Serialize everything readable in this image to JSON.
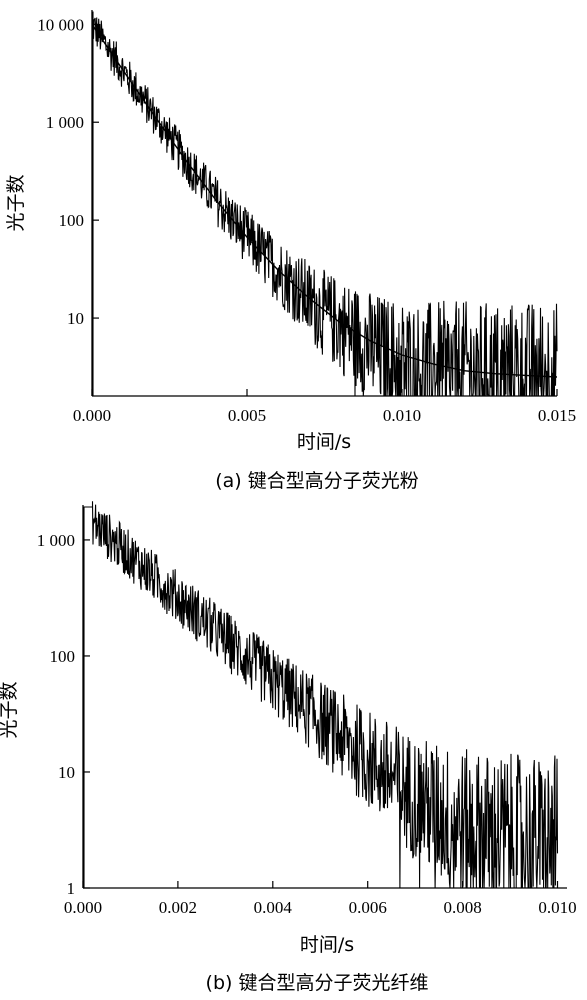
{
  "chart_data": [
    {
      "type": "line",
      "caption": "(a) 键合型高分子荧光粉",
      "xlabel": "时间/s",
      "ylabel": "光子数",
      "xlim": [
        0.0,
        0.015
      ],
      "ylim": [
        1.6,
        14000
      ],
      "yscale": "log",
      "xticks": [
        0.0,
        0.005,
        0.01,
        0.015
      ],
      "xtick_labels": [
        "0.000",
        "0.005",
        "0.010",
        "0.015"
      ],
      "yticks": [
        10,
        100,
        1000,
        10000
      ],
      "ytick_labels": [
        "10",
        "100",
        "1 000",
        "10 000"
      ],
      "grid": false,
      "series": [
        {
          "kind": "measured",
          "x": [
            0.0,
            0.0005,
            0.001,
            0.0015,
            0.002,
            0.0025,
            0.003,
            0.0035,
            0.004,
            0.0045,
            0.005,
            0.0055,
            0.006,
            0.0065,
            0.007,
            0.0075,
            0.008,
            0.0085,
            0.009,
            0.0095,
            0.01,
            0.0105,
            0.011,
            0.0115,
            0.012,
            0.0125,
            0.013,
            0.0135,
            0.014,
            0.0145,
            0.015
          ],
          "y": [
            10000,
            5800,
            3400,
            2000,
            1180,
            700,
            420,
            255,
            160,
            102,
            67,
            45,
            31,
            22,
            15,
            11,
            8.5,
            6.5,
            5,
            4,
            3.5,
            3,
            3,
            3,
            3,
            3,
            3,
            3,
            3,
            3,
            3
          ]
        },
        {
          "kind": "fit",
          "x": [
            0.0,
            0.001,
            0.002,
            0.003,
            0.004,
            0.005,
            0.006,
            0.007,
            0.008,
            0.009,
            0.01,
            0.011,
            0.012,
            0.013,
            0.014,
            0.015
          ],
          "y": [
            10000,
            3400,
            1180,
            420,
            160,
            67,
            31,
            16,
            9,
            5.8,
            4.2,
            3.4,
            2.9,
            2.7,
            2.6,
            2.5
          ]
        }
      ]
    },
    {
      "type": "line",
      "caption": "(b) 键合型高分子荧光纤维",
      "xlabel": "时间/s",
      "ylabel": "光子数",
      "xlim": [
        0.0,
        0.0102
      ],
      "ylim": [
        1,
        2000
      ],
      "yscale": "log",
      "xticks": [
        0.0,
        0.002,
        0.004,
        0.006,
        0.008,
        0.01
      ],
      "xtick_labels": [
        "0.000",
        "0.002",
        "0.004",
        "0.006",
        "0.008",
        "0.010"
      ],
      "yticks": [
        1,
        10,
        100,
        1000
      ],
      "ytick_labels": [
        "1",
        "10",
        "100",
        "1 000"
      ],
      "grid": false,
      "series": [
        {
          "kind": "measured",
          "x": [
            0.0002,
            0.0005,
            0.001,
            0.0015,
            0.002,
            0.0025,
            0.003,
            0.0035,
            0.004,
            0.0045,
            0.005,
            0.0055,
            0.006,
            0.0065,
            0.007,
            0.0075,
            0.008,
            0.0085,
            0.009,
            0.0095,
            0.01
          ],
          "y": [
            1450,
            1100,
            730,
            480,
            320,
            210,
            140,
            92,
            62,
            42,
            28,
            19,
            13,
            9,
            6,
            4.5,
            3.5,
            3,
            2.7,
            2.5,
            2.5
          ]
        }
      ]
    }
  ]
}
